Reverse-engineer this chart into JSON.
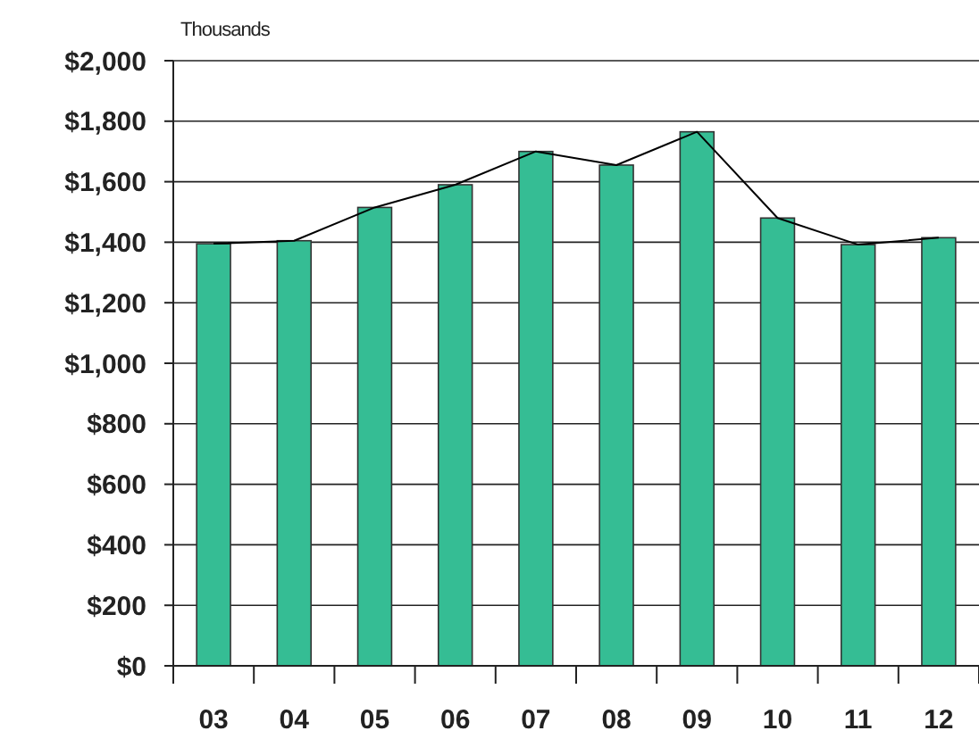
{
  "chart_data": {
    "type": "bar",
    "ylabel": "Thousands",
    "categories": [
      "03",
      "04",
      "05",
      "06",
      "07",
      "08",
      "09",
      "10",
      "11",
      "12"
    ],
    "series": [
      {
        "color": "#35bd94",
        "values": [
          1395,
          1405,
          1515,
          1590,
          1700,
          1655,
          1765,
          1480,
          1392,
          1415
        ]
      },
      {
        "type": "line",
        "color": "#000000",
        "values": [
          1395,
          1405,
          1515,
          1590,
          1700,
          1655,
          1765,
          1480,
          1392,
          1415
        ]
      }
    ],
    "ylim": [
      0,
      2000
    ],
    "yticks": [
      {
        "value": 0,
        "label": "$0"
      },
      {
        "value": 200,
        "label": "$200"
      },
      {
        "value": 400,
        "label": "$400"
      },
      {
        "value": 600,
        "label": "$600"
      },
      {
        "value": 800,
        "label": "$800"
      },
      {
        "value": 1000,
        "label": "$1,000"
      },
      {
        "value": 1200,
        "label": "$1,200"
      },
      {
        "value": 1400,
        "label": "$1,400"
      },
      {
        "value": 1600,
        "label": "$1,600"
      },
      {
        "value": 1800,
        "label": "$1,800"
      },
      {
        "value": 2000,
        "label": "$2,000"
      }
    ],
    "grid": "y"
  }
}
